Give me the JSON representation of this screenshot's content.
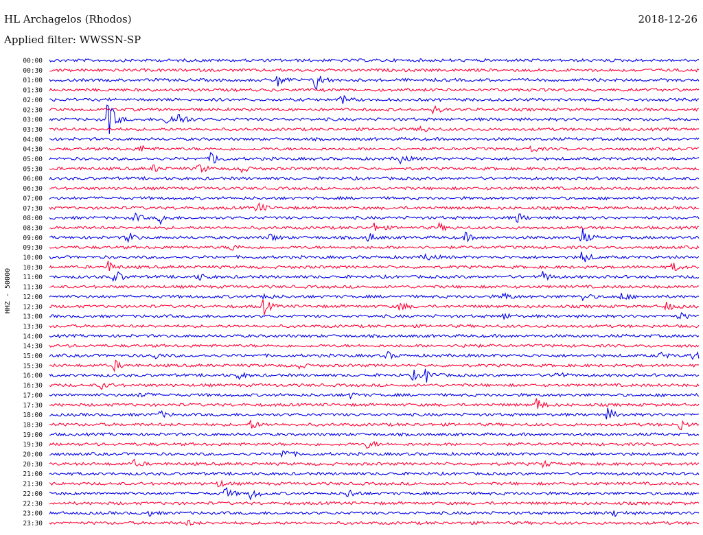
{
  "header": {
    "station": "HL Archagelos (Rhodos)",
    "date": "2018-12-26",
    "filter": "Applied filter: WWSSN-SP"
  },
  "colors": {
    "trace_a": "#0000e6",
    "trace_b": "#ff0033"
  },
  "chart_data": {
    "type": "line",
    "title": "HL Archagelos (Rhodos)",
    "ylabel": "HHZ - 50000",
    "time_labels": [
      "00:00",
      "00:30",
      "01:00",
      "01:30",
      "02:00",
      "02:30",
      "03:00",
      "03:30",
      "04:00",
      "04:30",
      "05:00",
      "05:30",
      "06:00",
      "06:30",
      "07:00",
      "07:30",
      "08:00",
      "08:30",
      "09:00",
      "09:30",
      "10:00",
      "10:30",
      "11:00",
      "11:30",
      "12:00",
      "12:30",
      "13:00",
      "13:30",
      "14:00",
      "14:30",
      "15:00",
      "15:30",
      "16:00",
      "16:30",
      "17:00",
      "17:30",
      "18:00",
      "18:30",
      "19:00",
      "19:30",
      "20:00",
      "20:30",
      "21:00",
      "21:30",
      "22:00",
      "22:30",
      "23:00",
      "23:30"
    ],
    "series_colors": [
      "blue",
      "red"
    ],
    "events": [
      {
        "row": 2,
        "x": 0.35,
        "amp": 3.0
      },
      {
        "row": 2,
        "x": 0.41,
        "amp": 4.0
      },
      {
        "row": 4,
        "x": 0.45,
        "amp": 1.6
      },
      {
        "row": 5,
        "x": 0.59,
        "amp": 1.3
      },
      {
        "row": 6,
        "x": 0.09,
        "amp": 8.0
      },
      {
        "row": 6,
        "x": 0.18,
        "amp": 2.5
      },
      {
        "row": 6,
        "x": 0.2,
        "amp": 3.0
      },
      {
        "row": 7,
        "x": 0.57,
        "amp": 1.5
      },
      {
        "row": 9,
        "x": 0.14,
        "amp": 1.3
      },
      {
        "row": 9,
        "x": 0.74,
        "amp": 1.3
      },
      {
        "row": 10,
        "x": 0.25,
        "amp": 3.0
      },
      {
        "row": 10,
        "x": 0.54,
        "amp": 2.0
      },
      {
        "row": 11,
        "x": 0.16,
        "amp": 1.4
      },
      {
        "row": 11,
        "x": 0.23,
        "amp": 2.0
      },
      {
        "row": 11,
        "x": 0.29,
        "amp": 2.3
      },
      {
        "row": 15,
        "x": 0.32,
        "amp": 2.2
      },
      {
        "row": 16,
        "x": 0.13,
        "amp": 1.7
      },
      {
        "row": 16,
        "x": 0.17,
        "amp": 2.0
      },
      {
        "row": 16,
        "x": 0.72,
        "amp": 1.8
      },
      {
        "row": 17,
        "x": 0.5,
        "amp": 1.5
      },
      {
        "row": 17,
        "x": 0.6,
        "amp": 1.3
      },
      {
        "row": 18,
        "x": 0.12,
        "amp": 2.3
      },
      {
        "row": 18,
        "x": 0.34,
        "amp": 1.5
      },
      {
        "row": 18,
        "x": 0.49,
        "amp": 1.8
      },
      {
        "row": 18,
        "x": 0.64,
        "amp": 1.6
      },
      {
        "row": 18,
        "x": 0.82,
        "amp": 3.0
      },
      {
        "row": 19,
        "x": 0.28,
        "amp": 1.4
      },
      {
        "row": 20,
        "x": 0.58,
        "amp": 1.6
      },
      {
        "row": 20,
        "x": 0.82,
        "amp": 2.5
      },
      {
        "row": 21,
        "x": 0.09,
        "amp": 2.0
      },
      {
        "row": 21,
        "x": 0.96,
        "amp": 1.6
      },
      {
        "row": 22,
        "x": 0.1,
        "amp": 3.0
      },
      {
        "row": 22,
        "x": 0.23,
        "amp": 1.4
      },
      {
        "row": 22,
        "x": 0.76,
        "amp": 1.8
      },
      {
        "row": 24,
        "x": 0.33,
        "amp": 1.4
      },
      {
        "row": 24,
        "x": 0.7,
        "amp": 1.6
      },
      {
        "row": 24,
        "x": 0.82,
        "amp": 1.6
      },
      {
        "row": 24,
        "x": 0.88,
        "amp": 1.6
      },
      {
        "row": 25,
        "x": 0.33,
        "amp": 3.0
      },
      {
        "row": 25,
        "x": 0.54,
        "amp": 1.8
      },
      {
        "row": 25,
        "x": 0.95,
        "amp": 1.7
      },
      {
        "row": 26,
        "x": 0.7,
        "amp": 1.2
      },
      {
        "row": 26,
        "x": 0.97,
        "amp": 1.4
      },
      {
        "row": 29,
        "x": 0.64,
        "amp": 1.6
      },
      {
        "row": 30,
        "x": 0.16,
        "amp": 1.3
      },
      {
        "row": 30,
        "x": 0.52,
        "amp": 1.3
      },
      {
        "row": 30,
        "x": 0.94,
        "amp": 1.3
      },
      {
        "row": 30,
        "x": 0.99,
        "amp": 2.0
      },
      {
        "row": 31,
        "x": 0.1,
        "amp": 1.8
      },
      {
        "row": 31,
        "x": 0.38,
        "amp": 1.6
      },
      {
        "row": 32,
        "x": 0.29,
        "amp": 1.4
      },
      {
        "row": 32,
        "x": 0.56,
        "amp": 1.8
      },
      {
        "row": 32,
        "x": 0.58,
        "amp": 2.5
      },
      {
        "row": 32,
        "x": 0.78,
        "amp": 1.6
      },
      {
        "row": 33,
        "x": 0.08,
        "amp": 1.3
      },
      {
        "row": 34,
        "x": 0.14,
        "amp": 1.4
      },
      {
        "row": 34,
        "x": 0.46,
        "amp": 1.2
      },
      {
        "row": 35,
        "x": 0.75,
        "amp": 2.5
      },
      {
        "row": 36,
        "x": 0.17,
        "amp": 1.2
      },
      {
        "row": 36,
        "x": 0.86,
        "amp": 2.5
      },
      {
        "row": 37,
        "x": 0.31,
        "amp": 1.8
      },
      {
        "row": 37,
        "x": 0.97,
        "amp": 2.0
      },
      {
        "row": 39,
        "x": 0.49,
        "amp": 1.6
      },
      {
        "row": 40,
        "x": 0.36,
        "amp": 2.0
      },
      {
        "row": 41,
        "x": 0.13,
        "amp": 1.3
      },
      {
        "row": 41,
        "x": 0.76,
        "amp": 1.2
      },
      {
        "row": 43,
        "x": 0.26,
        "amp": 1.2
      },
      {
        "row": 44,
        "x": 0.27,
        "amp": 2.3
      },
      {
        "row": 44,
        "x": 0.31,
        "amp": 2.3
      },
      {
        "row": 44,
        "x": 0.46,
        "amp": 1.8
      },
      {
        "row": 46,
        "x": 0.15,
        "amp": 1.2
      },
      {
        "row": 46,
        "x": 0.87,
        "amp": 1.2
      },
      {
        "row": 47,
        "x": 0.21,
        "amp": 1.2
      }
    ]
  }
}
